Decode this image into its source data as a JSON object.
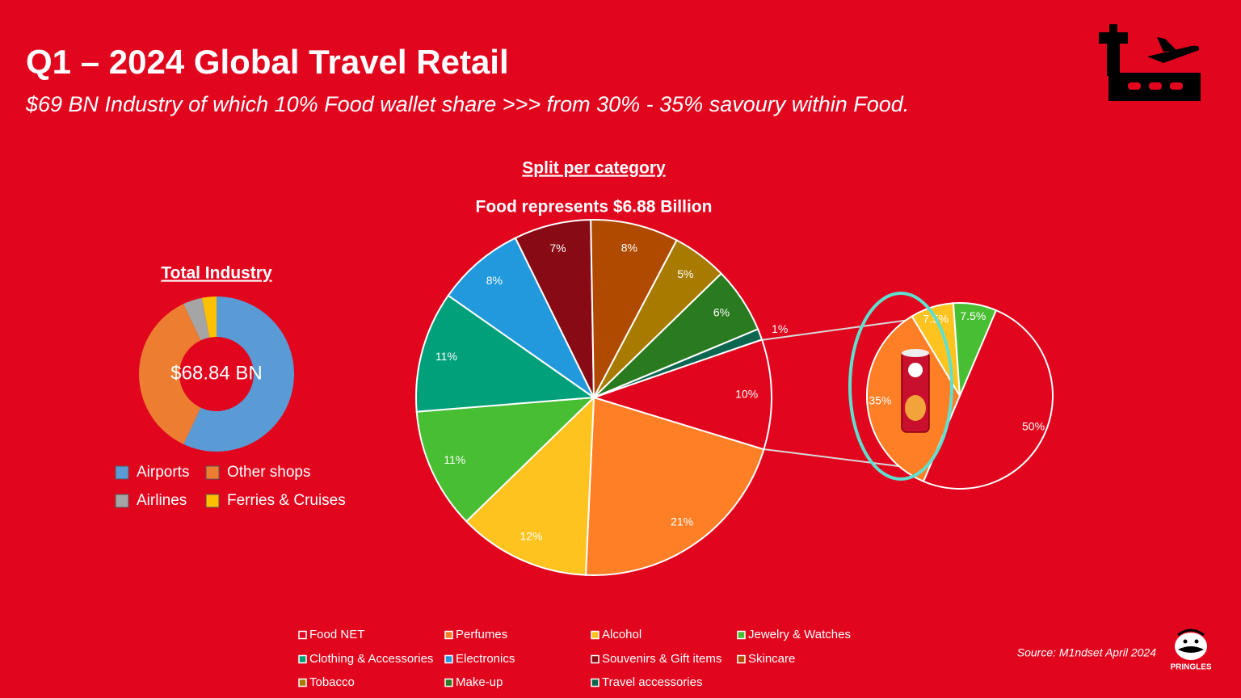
{
  "header": {
    "title": "Q1 – 2024 Global Travel Retail",
    "subtitle": "$69 BN Industry of which 10% Food wallet share >>> from 30% - 35% savoury within Food."
  },
  "source": "Source: M1ndset April 2024",
  "brand": "PRINGLES",
  "chart_data": [
    {
      "type": "donut",
      "title": "Total Industry",
      "center_label": "$68.84 BN",
      "categories": [
        "Airports",
        "Other shops",
        "Airlines",
        "Ferries & Cruises"
      ],
      "values": [
        57,
        36,
        4,
        3
      ],
      "colors": [
        "#5b9bd5",
        "#ed7d31",
        "#a5a5a5",
        "#ffc000"
      ]
    },
    {
      "type": "pie",
      "title": "Split per category",
      "subtitle": "Food represents $6.88 Billion",
      "categories": [
        "Food NET",
        "Perfumes",
        "Alcohol",
        "Jewelry & Watches",
        "Clothing & Accessories",
        "Electronics",
        "Souvenirs & Gift items",
        "Skincare",
        "Tobacco",
        "Make-up",
        "Travel accessories"
      ],
      "values": [
        10,
        21,
        12,
        11,
        11,
        8,
        7,
        8,
        5,
        6,
        1
      ],
      "value_labels": [
        "10%",
        "21%",
        "12%",
        "11%",
        "11%",
        "8%",
        "7%",
        "8%",
        "5%",
        "6%",
        "1%"
      ],
      "colors": [
        "#e1061e",
        "#ff7f27",
        "#ffc31f",
        "#48be33",
        "#00a07a",
        "#2299dd",
        "#880a14",
        "#b04a00",
        "#a87b00",
        "#2a7a20",
        "#0d6650"
      ]
    },
    {
      "type": "pie",
      "values": [
        35,
        7.5,
        7.5,
        50
      ],
      "value_labels": [
        "35%",
        "7.5%",
        "7.5%",
        "50%"
      ],
      "colors": [
        "#ff7f27",
        "#ffc31f",
        "#48be33",
        "#e1061e"
      ]
    }
  ]
}
